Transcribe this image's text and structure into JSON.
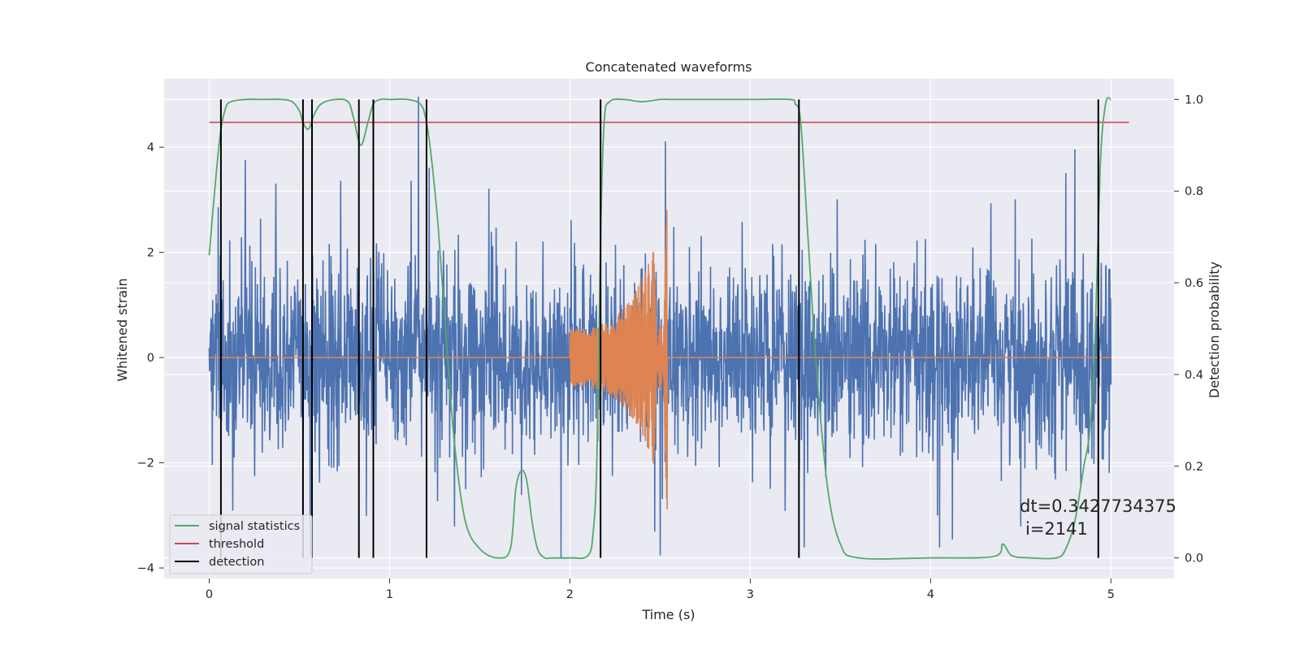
{
  "chart_data": {
    "type": "line",
    "title": "Concatenated waveforms",
    "xlabel": "Time (s)",
    "ylabel_left": "Whitened strain",
    "ylabel_right": "Detection probability",
    "xlim": [
      -0.25,
      5.35
    ],
    "ylim_left": [
      -4.2,
      5.3
    ],
    "ylim_right": [
      -0.045,
      1.045
    ],
    "x_ticks": [
      0,
      1,
      2,
      3,
      4,
      5
    ],
    "y_ticks_left": [
      -4,
      -2,
      0,
      2,
      4
    ],
    "y_ticks_right": [
      0.0,
      0.2,
      0.4,
      0.6,
      0.8,
      1.0
    ],
    "grid": true,
    "legend_position": "lower-left",
    "colors": {
      "background": "#eaeaf2",
      "grid": "#ffffff",
      "noise": "#4c72b0",
      "template": "#dd8452",
      "signal_statistics": "#55a868",
      "threshold": "#c44e52",
      "detection": "#000000"
    },
    "series": [
      {
        "name": "signal statistics",
        "axis": "right",
        "color": "#55a868",
        "x": [
          0.0,
          0.03,
          0.06,
          0.09,
          0.12,
          0.2,
          0.3,
          0.4,
          0.46,
          0.5,
          0.52,
          0.55,
          0.58,
          0.62,
          0.7,
          0.77,
          0.8,
          0.84,
          0.88,
          0.91,
          0.95,
          1.0,
          1.1,
          1.17,
          1.2,
          1.23,
          1.27,
          1.31,
          1.36,
          1.42,
          1.5,
          1.6,
          1.67,
          1.7,
          1.73,
          1.76,
          1.79,
          1.82,
          1.86,
          1.9,
          2.0,
          2.1,
          2.13,
          2.15,
          2.17,
          2.19,
          2.22,
          2.3,
          2.4,
          2.5,
          2.6,
          3.0,
          3.22,
          3.25,
          3.28,
          3.32,
          3.37,
          3.43,
          3.5,
          3.6,
          4.0,
          4.35,
          4.4,
          4.45,
          4.55,
          4.7,
          4.75,
          4.8,
          4.85,
          4.88,
          4.91,
          4.94,
          4.97,
          5.0
        ],
        "values": [
          0.66,
          0.8,
          0.92,
          0.98,
          0.995,
          1.0,
          1.0,
          1.0,
          0.995,
          0.975,
          0.95,
          0.935,
          0.965,
          0.99,
          1.0,
          0.995,
          0.96,
          0.9,
          0.95,
          0.99,
          1.0,
          1.0,
          1.0,
          0.99,
          0.96,
          0.88,
          0.72,
          0.5,
          0.25,
          0.08,
          0.02,
          0.0,
          0.02,
          0.15,
          0.19,
          0.17,
          0.08,
          0.02,
          0.0,
          0.0,
          0.0,
          0.005,
          0.06,
          0.22,
          0.7,
          0.95,
          0.995,
          1.0,
          0.995,
          1.0,
          1.0,
          1.0,
          1.0,
          0.99,
          0.95,
          0.7,
          0.4,
          0.15,
          0.03,
          0.0,
          0.0,
          0.003,
          0.03,
          0.005,
          0.0,
          0.0,
          0.02,
          0.08,
          0.2,
          0.27,
          0.45,
          0.85,
          0.99,
          1.0
        ]
      },
      {
        "name": "threshold",
        "axis": "right",
        "color": "#c44e52",
        "x": [
          0.0,
          5.1
        ],
        "values": [
          0.95,
          0.95
        ]
      },
      {
        "name": "detection",
        "axis": "right",
        "color": "#000000",
        "type": "vlines",
        "ymin": 0.0,
        "ymax": 1.0,
        "x": [
          0.065,
          0.52,
          0.57,
          0.83,
          0.91,
          1.205,
          2.17,
          3.27,
          4.93
        ]
      },
      {
        "axis": "left",
        "color": "#4c72b0",
        "type": "noise",
        "x_range": [
          0.0,
          5.0
        ],
        "std": 0.9,
        "peaks": [
          {
            "x": 0.05,
            "y": 2.85
          },
          {
            "x": 0.2,
            "y": 3.75
          },
          {
            "x": 0.37,
            "y": 3.3
          },
          {
            "x": 0.73,
            "y": 3.35
          },
          {
            "x": 1.12,
            "y": 3.35
          },
          {
            "x": 1.16,
            "y": 4.95
          },
          {
            "x": 1.22,
            "y": 3.6
          },
          {
            "x": 1.55,
            "y": 3.2
          },
          {
            "x": 2.5,
            "y": 3.55
          },
          {
            "x": 2.53,
            "y": 4.1
          },
          {
            "x": 4.75,
            "y": 3.5
          },
          {
            "x": 4.8,
            "y": 3.95
          },
          {
            "x": 0.13,
            "y": -2.9
          },
          {
            "x": 0.56,
            "y": -3.75
          },
          {
            "x": 1.36,
            "y": -3.2
          },
          {
            "x": 1.95,
            "y": -3.8
          },
          {
            "x": 2.47,
            "y": -3.3
          },
          {
            "x": 2.5,
            "y": -3.75
          },
          {
            "x": 3.3,
            "y": -3.6
          },
          {
            "x": 4.05,
            "y": -3.6
          },
          {
            "x": 4.12,
            "y": -3.45
          },
          {
            "x": 4.5,
            "y": -3.2
          }
        ]
      },
      {
        "axis": "left",
        "color": "#dd8452",
        "type": "chirp",
        "x_range": [
          0.0,
          5.0
        ],
        "chirp_start": 2.0,
        "chirp_end": 2.54,
        "amp_start": 0.55,
        "amp_peak": 2.9
      }
    ],
    "annotation": {
      "text_line1": "dt=0.3427734375",
      "text_line2": "i=2141"
    },
    "legend": [
      {
        "label": "signal statistics",
        "color": "#55a868"
      },
      {
        "label": "threshold",
        "color": "#c44e52"
      },
      {
        "label": "detection",
        "color": "#000000"
      }
    ]
  }
}
